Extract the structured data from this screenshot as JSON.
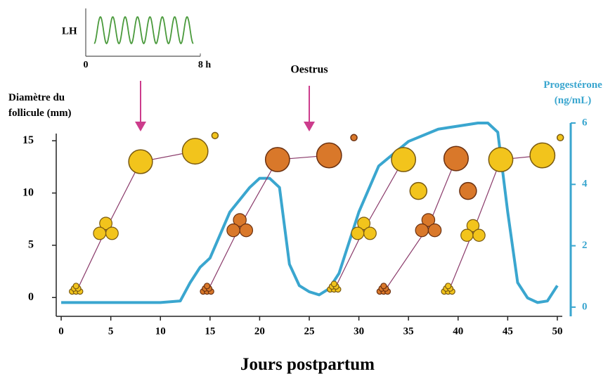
{
  "chart_data": {
    "type": "follicle-waves",
    "xlabel": "Jours postpartum",
    "ylabel": "Diamètre du follicule (mm)",
    "y2label": "Progestérone (ng/mL)",
    "xlim": [
      -0.5,
      50.5
    ],
    "xticks": [
      0,
      5,
      10,
      15,
      20,
      25,
      30,
      35,
      40,
      45,
      50
    ],
    "ylim": [
      -1.8,
      16.7
    ],
    "yticks": [
      0,
      5,
      10,
      15
    ],
    "y2lim": [
      -0.3,
      6
    ],
    "y2ticks": [
      0,
      2,
      4,
      6
    ],
    "y2color": "#3aa6cf",
    "line_color": "#8a3a6a",
    "progesterone": {
      "axis": "y2",
      "color": "#3aa6cf",
      "x": [
        0,
        5,
        10,
        12,
        13,
        14,
        15,
        17,
        19,
        20,
        21,
        22,
        23,
        24,
        25,
        26,
        27,
        28,
        30,
        32,
        35,
        38,
        40,
        42,
        43,
        44,
        45,
        46,
        47,
        48,
        49,
        50
      ],
      "values": [
        0.15,
        0.15,
        0.15,
        0.2,
        0.8,
        1.3,
        1.6,
        3.1,
        3.9,
        4.2,
        4.2,
        3.9,
        1.4,
        0.7,
        0.5,
        0.4,
        0.6,
        1.1,
        3.1,
        4.6,
        5.4,
        5.8,
        5.9,
        6.0,
        6.0,
        5.7,
        3.1,
        0.8,
        0.3,
        0.15,
        0.2,
        0.7
      ]
    },
    "waves": [
      {
        "color": "#f2c41c",
        "x": [
          1.5,
          4.5,
          8,
          13.5
        ],
        "values": [
          0.5,
          6.5,
          13,
          14
        ],
        "regress_x": 15.5,
        "regress_value": 15.5
      },
      {
        "color": "#d9782a",
        "x": [
          14.7,
          18,
          21.8,
          27
        ],
        "values": [
          0.5,
          6.8,
          13.2,
          13.6
        ],
        "regress_x": 29.5,
        "regress_value": 15.3
      },
      {
        "color": "#f2c41c",
        "x": [
          27.5,
          30.5,
          34.5
        ],
        "values": [
          0.7,
          6.5,
          13.2
        ],
        "regress_x": 36,
        "regress_value": 10.2
      },
      {
        "color": "#d9782a",
        "x": [
          32.5,
          37,
          39.8
        ],
        "values": [
          0.5,
          6.8,
          13.3
        ],
        "regress_x": 41,
        "regress_value": 10.2
      },
      {
        "color": "#f2c41c",
        "x": [
          39,
          41.5,
          44.3,
          48.5
        ],
        "values": [
          0.5,
          6.3,
          13.2,
          13.6
        ],
        "regress_x": 50.3,
        "regress_value": 15.3
      }
    ],
    "arrow_color": "#cc3c8c",
    "annotations": [
      {
        "text": "Oestrus",
        "x": 25
      }
    ],
    "lh_inset": {
      "label": "LH",
      "pulses": 8,
      "color": "#4a9a3c",
      "xlim": [
        0,
        8
      ],
      "xticks": [
        {
          "value": 0,
          "label": "0"
        },
        {
          "value": 8,
          "label": "8 h"
        }
      ],
      "arrow_x": 8
    }
  }
}
